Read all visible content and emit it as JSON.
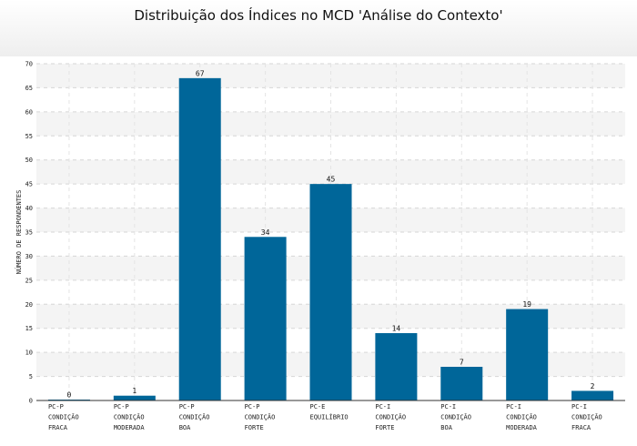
{
  "chart_data": {
    "type": "bar",
    "title": "Distribuição dos Índices no MCD 'Análise do Contexto'",
    "xlabel": "",
    "ylabel": "NÚMERO DE RESPONDENTES",
    "ylim": [
      0,
      70
    ],
    "ytick_step": 5,
    "grid": true,
    "legend": "none",
    "bar_color": "#006699",
    "categories": [
      [
        "PC-P",
        "CONDIÇÃO",
        "FRACA"
      ],
      [
        "PC-P",
        "CONDIÇÃO",
        "MODERADA"
      ],
      [
        "PC-P",
        "CONDIÇÃO",
        "BOA"
      ],
      [
        "PC-P",
        "CONDIÇÃO",
        "FORTE"
      ],
      [
        "PC-E",
        "EQUILÍBRIO"
      ],
      [
        "PC-I",
        "CONDIÇÃO",
        "FORTE"
      ],
      [
        "PC-I",
        "CONDIÇÃO",
        "BOA"
      ],
      [
        "PC-I",
        "CONDIÇÃO",
        "MODERADA"
      ],
      [
        "PC-I",
        "CONDIÇÃO",
        "FRACA"
      ]
    ],
    "values": [
      0,
      1,
      67,
      34,
      45,
      14,
      7,
      19,
      2
    ]
  }
}
